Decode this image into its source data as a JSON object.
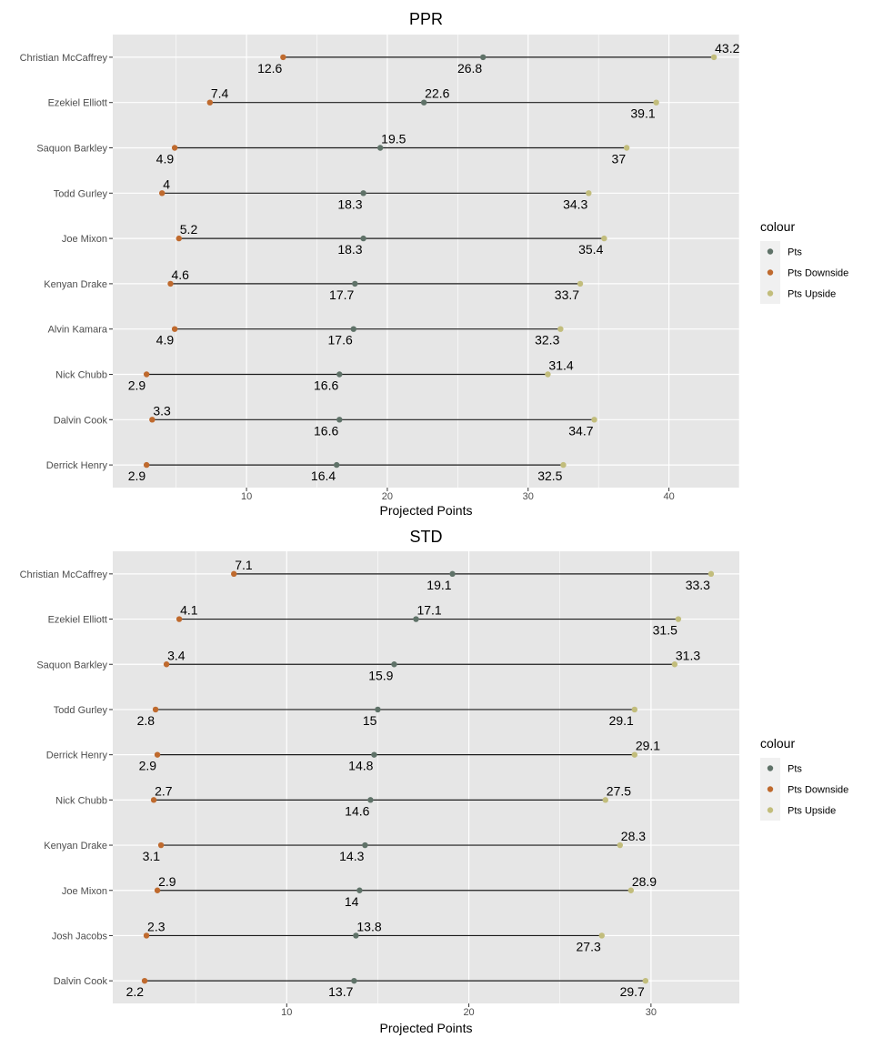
{
  "colors": {
    "panel": "#e6e6e6",
    "grid_major": "#ffffff",
    "segment": "#1a1a1a",
    "pts": "#5f7268",
    "downside": "#bf6a2e",
    "upside": "#c2bd7c"
  },
  "chart_data": [
    {
      "type": "dumbbell",
      "title": "PPR",
      "xlabel": "Projected Points",
      "ylabel": "",
      "xlim": [
        0.5,
        45.0
      ],
      "xticks": [
        10,
        20,
        30,
        40
      ],
      "grid": true,
      "legend": {
        "title": "colour",
        "position": "right",
        "items": [
          "Pts",
          "Pts Downside",
          "Pts Upside"
        ]
      },
      "players": [
        {
          "name": "Christian McCaffrey",
          "pts": 26.8,
          "downside": 12.6,
          "upside": 43.2
        },
        {
          "name": "Ezekiel Elliott",
          "pts": 22.6,
          "downside": 7.4,
          "upside": 39.1
        },
        {
          "name": "Saquon Barkley",
          "pts": 19.5,
          "downside": 4.9,
          "upside": 37
        },
        {
          "name": "Todd Gurley",
          "pts": 18.3,
          "downside": 4,
          "upside": 34.3
        },
        {
          "name": "Joe Mixon",
          "pts": 18.3,
          "downside": 5.2,
          "upside": 35.4
        },
        {
          "name": "Kenyan Drake",
          "pts": 17.7,
          "downside": 4.6,
          "upside": 33.7
        },
        {
          "name": "Alvin Kamara",
          "pts": 17.6,
          "downside": 4.9,
          "upside": 32.3
        },
        {
          "name": "Nick Chubb",
          "pts": 16.6,
          "downside": 2.9,
          "upside": 31.4
        },
        {
          "name": "Dalvin Cook",
          "pts": 16.6,
          "downside": 3.3,
          "upside": 34.7
        },
        {
          "name": "Derrick Henry",
          "pts": 16.4,
          "downside": 2.9,
          "upside": 32.5
        }
      ]
    },
    {
      "type": "dumbbell",
      "title": "STD",
      "xlabel": "Projected Points",
      "ylabel": "",
      "xlim": [
        0.45,
        34.85
      ],
      "xticks": [
        10,
        20,
        30
      ],
      "grid": true,
      "legend": {
        "title": "colour",
        "position": "right",
        "items": [
          "Pts",
          "Pts Downside",
          "Pts Upside"
        ]
      },
      "players": [
        {
          "name": "Christian McCaffrey",
          "pts": 19.1,
          "downside": 7.1,
          "upside": 33.3
        },
        {
          "name": "Ezekiel Elliott",
          "pts": 17.1,
          "downside": 4.1,
          "upside": 31.5
        },
        {
          "name": "Saquon Barkley",
          "pts": 15.9,
          "downside": 3.4,
          "upside": 31.3
        },
        {
          "name": "Todd Gurley",
          "pts": 15,
          "downside": 2.8,
          "upside": 29.1
        },
        {
          "name": "Derrick Henry",
          "pts": 14.8,
          "downside": 2.9,
          "upside": 29.1
        },
        {
          "name": "Nick Chubb",
          "pts": 14.6,
          "downside": 2.7,
          "upside": 27.5
        },
        {
          "name": "Kenyan Drake",
          "pts": 14.3,
          "downside": 3.1,
          "upside": 28.3
        },
        {
          "name": "Joe Mixon",
          "pts": 14,
          "downside": 2.9,
          "upside": 28.9
        },
        {
          "name": "Josh Jacobs",
          "pts": 13.8,
          "downside": 2.3,
          "upside": 27.3
        },
        {
          "name": "Dalvin Cook",
          "pts": 13.7,
          "downside": 2.2,
          "upside": 29.7
        }
      ]
    }
  ]
}
